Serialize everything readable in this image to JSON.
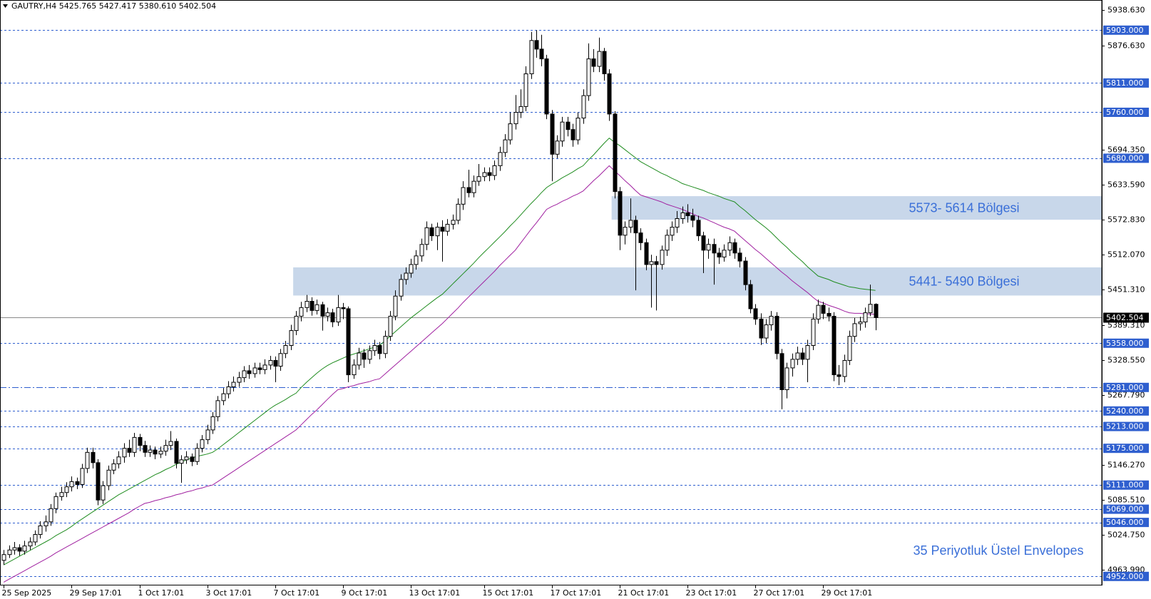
{
  "chart_data": {
    "type": "candlestick",
    "title": "GAUTRY,H4  5425.765 5427.417 5380.610 5402.504",
    "annotation": "35 Periyotluk Üstel Envelopes",
    "categories": [
      "25 Sep 2025",
      null,
      null,
      null,
      null,
      null,
      null,
      null,
      null,
      null,
      null,
      null,
      null,
      "29 Sep 17:01",
      null,
      null,
      null,
      null,
      null,
      null,
      null,
      null,
      null,
      null,
      null,
      null,
      "1 Oct 17:01",
      null,
      null,
      null,
      null,
      null,
      null,
      null,
      null,
      null,
      null,
      null,
      null,
      "3 Oct 17:01",
      null,
      null,
      null,
      null,
      null,
      null,
      null,
      null,
      null,
      null,
      null,
      null,
      "7 Oct 17:01",
      null,
      null,
      null,
      null,
      null,
      null,
      null,
      null,
      null,
      null,
      null,
      null,
      "9 Oct 17:01",
      null,
      null,
      null,
      null,
      null,
      null,
      null,
      null,
      null,
      null,
      null,
      null,
      "13 Oct 17:01",
      null,
      null,
      null,
      null,
      null,
      null,
      null,
      null,
      null,
      null,
      null,
      null,
      null,
      "15 Oct 17:01",
      null,
      null,
      null,
      null,
      null,
      null,
      null,
      null,
      null,
      null,
      null,
      null,
      "17 Oct 17:01",
      null,
      null,
      null,
      null,
      null,
      null,
      null,
      null,
      null,
      null,
      null,
      null,
      "21 Oct 17:01",
      null,
      null,
      null,
      null,
      null,
      null,
      null,
      null,
      null,
      null,
      null,
      null,
      "23 Oct 17:01",
      null,
      null,
      null,
      null,
      null,
      null,
      null,
      null,
      null,
      null,
      null,
      null,
      "27 Oct 17:01",
      null,
      null,
      null,
      null,
      null,
      null,
      null,
      null,
      null,
      null,
      null,
      null,
      "29 Oct 17:01",
      null,
      null,
      null,
      null,
      null,
      null,
      null,
      null,
      null,
      null
    ],
    "open": [
      4980,
      4990,
      4998,
      5002,
      4996,
      5005,
      5012,
      5025,
      5040,
      5047,
      5070,
      5091,
      5098,
      5108,
      5117,
      5112,
      5140,
      5168,
      5150,
      5085,
      5110,
      5137,
      5148,
      5160,
      5175,
      5168,
      5194,
      5180,
      5168,
      5172,
      5165,
      5170,
      5180,
      5187,
      5149,
      5155,
      5160,
      5152,
      5175,
      5190,
      5207,
      5230,
      5258,
      5270,
      5282,
      5290,
      5298,
      5310,
      5305,
      5315,
      5312,
      5320,
      5328,
      5318,
      5340,
      5354,
      5380,
      5405,
      5420,
      5431,
      5415,
      5425,
      5405,
      5411,
      5395,
      5420,
      5418,
      5303,
      5320,
      5341,
      5330,
      5345,
      5354,
      5340,
      5370,
      5405,
      5440,
      5469,
      5480,
      5495,
      5510,
      5530,
      5559,
      5545,
      5560,
      5553,
      5565,
      5572,
      5600,
      5629,
      5620,
      5640,
      5648,
      5655,
      5650,
      5667,
      5690,
      5712,
      5740,
      5760,
      5770,
      5827,
      5885,
      5870,
      5853,
      5757,
      5687,
      5710,
      5743,
      5730,
      5712,
      5750,
      5789,
      5853,
      5840,
      5866,
      5827,
      5757,
      5622,
      5546,
      5560,
      5572,
      5550,
      5533,
      5495,
      5500,
      5495,
      5520,
      5546,
      5560,
      5575,
      5585,
      5580,
      5572,
      5545,
      5520,
      5530,
      5515,
      5508,
      5520,
      5533,
      5515,
      5501,
      5460,
      5418,
      5400,
      5367,
      5390,
      5405,
      5340,
      5277,
      5315,
      5330,
      5341,
      5330,
      5354,
      5400,
      5424,
      5410,
      5405,
      5303,
      5300,
      5328,
      5370,
      5392,
      5395,
      5411,
      5425.765
    ],
    "high": [
      4998,
      5006,
      5012,
      5008,
      5014,
      5020,
      5032,
      5048,
      5058,
      5078,
      5098,
      5108,
      5116,
      5126,
      5124,
      5148,
      5176,
      5176,
      5156,
      5118,
      5145,
      5156,
      5170,
      5184,
      5190,
      5202,
      5200,
      5188,
      5180,
      5178,
      5178,
      5190,
      5205,
      5192,
      5163,
      5170,
      5166,
      5184,
      5198,
      5216,
      5238,
      5266,
      5280,
      5292,
      5300,
      5308,
      5318,
      5320,
      5324,
      5324,
      5330,
      5336,
      5335,
      5348,
      5362,
      5390,
      5414,
      5430,
      5442,
      5438,
      5434,
      5430,
      5420,
      5418,
      5442,
      5428,
      5422,
      5330,
      5350,
      5348,
      5354,
      5364,
      5360,
      5380,
      5414,
      5450,
      5478,
      5490,
      5505,
      5520,
      5540,
      5570,
      5566,
      5568,
      5572,
      5574,
      5582,
      5610,
      5640,
      5660,
      5650,
      5670,
      5664,
      5664,
      5676,
      5700,
      5722,
      5760,
      5790,
      5800,
      5840,
      5900,
      5903,
      5895,
      5860,
      5764,
      5720,
      5752,
      5752,
      5740,
      5760,
      5800,
      5880,
      5870,
      5890,
      5872,
      5835,
      5762,
      5630,
      5570,
      5610,
      5580,
      5558,
      5540,
      5512,
      5510,
      5528,
      5556,
      5570,
      5588,
      5596,
      5600,
      5592,
      5580,
      5552,
      5540,
      5540,
      5524,
      5530,
      5544,
      5540,
      5524,
      5508,
      5468,
      5426,
      5410,
      5400,
      5414,
      5412,
      5348,
      5324,
      5340,
      5352,
      5350,
      5364,
      5410,
      5434,
      5430,
      5420,
      5412,
      5320,
      5338,
      5380,
      5402,
      5404,
      5420,
      5460,
      5427.417
    ],
    "low": [
      4972,
      4984,
      4990,
      4988,
      4990,
      4998,
      5006,
      5018,
      5030,
      5040,
      5062,
      5084,
      5090,
      5100,
      5104,
      5106,
      5132,
      5140,
      5076,
      5078,
      5102,
      5130,
      5140,
      5150,
      5160,
      5160,
      5170,
      5160,
      5160,
      5156,
      5158,
      5162,
      5172,
      5140,
      5115,
      5148,
      5144,
      5146,
      5168,
      5182,
      5200,
      5222,
      5250,
      5262,
      5274,
      5282,
      5290,
      5296,
      5298,
      5304,
      5304,
      5312,
      5290,
      5310,
      5332,
      5346,
      5372,
      5396,
      5412,
      5406,
      5408,
      5380,
      5396,
      5386,
      5388,
      5400,
      5290,
      5296,
      5312,
      5315,
      5322,
      5336,
      5330,
      5332,
      5362,
      5398,
      5432,
      5460,
      5472,
      5486,
      5500,
      5520,
      5536,
      5520,
      5500,
      5545,
      5556,
      5565,
      5590,
      5612,
      5612,
      5632,
      5640,
      5640,
      5642,
      5658,
      5682,
      5704,
      5730,
      5750,
      5762,
      5818,
      5855,
      5840,
      5748,
      5640,
      5680,
      5700,
      5718,
      5700,
      5704,
      5740,
      5780,
      5830,
      5830,
      5815,
      5745,
      5610,
      5520,
      5530,
      5550,
      5450,
      5520,
      5485,
      5420,
      5415,
      5486,
      5510,
      5536,
      5550,
      5566,
      5568,
      5560,
      5536,
      5480,
      5505,
      5460,
      5496,
      5500,
      5510,
      5505,
      5490,
      5450,
      5410,
      5390,
      5355,
      5358,
      5380,
      5330,
      5243,
      5262,
      5300,
      5320,
      5320,
      5290,
      5346,
      5392,
      5400,
      5396,
      5292,
      5285,
      5290,
      5320,
      5360,
      5380,
      5385,
      5405,
      5380.61
    ],
    "close": [
      4990,
      4998,
      5002,
      4996,
      5005,
      5012,
      5025,
      5040,
      5047,
      5070,
      5091,
      5098,
      5108,
      5117,
      5112,
      5140,
      5168,
      5150,
      5085,
      5110,
      5137,
      5148,
      5160,
      5175,
      5168,
      5194,
      5180,
      5168,
      5172,
      5165,
      5170,
      5180,
      5187,
      5149,
      5155,
      5160,
      5152,
      5175,
      5190,
      5207,
      5230,
      5258,
      5270,
      5282,
      5290,
      5298,
      5310,
      5305,
      5315,
      5312,
      5320,
      5328,
      5318,
      5340,
      5354,
      5380,
      5405,
      5420,
      5431,
      5415,
      5425,
      5405,
      5411,
      5395,
      5420,
      5418,
      5303,
      5320,
      5341,
      5330,
      5345,
      5354,
      5340,
      5370,
      5405,
      5440,
      5469,
      5480,
      5495,
      5510,
      5530,
      5559,
      5545,
      5560,
      5553,
      5565,
      5572,
      5600,
      5629,
      5620,
      5640,
      5648,
      5655,
      5650,
      5667,
      5690,
      5712,
      5740,
      5760,
      5770,
      5827,
      5885,
      5870,
      5853,
      5757,
      5687,
      5710,
      5743,
      5730,
      5712,
      5750,
      5789,
      5853,
      5840,
      5866,
      5827,
      5757,
      5622,
      5546,
      5560,
      5572,
      5550,
      5533,
      5495,
      5500,
      5495,
      5520,
      5546,
      5560,
      5575,
      5585,
      5580,
      5572,
      5545,
      5520,
      5530,
      5515,
      5508,
      5520,
      5533,
      5515,
      5501,
      5460,
      5418,
      5400,
      5367,
      5390,
      5405,
      5340,
      5277,
      5315,
      5330,
      5341,
      5330,
      5354,
      5400,
      5424,
      5410,
      5405,
      5303,
      5300,
      5328,
      5370,
      5392,
      5395,
      5411,
      5425.765,
      5402.504
    ],
    "up_color": "#ffffff",
    "down_color": "#000000",
    "outline_color": "#000000",
    "envelopes": [
      {
        "color": "#1f8c1f",
        "values": [
          4972,
          4977,
          4982,
          4987,
          4992,
          4997,
          5002,
          5007,
          5012,
          5017,
          5023,
          5028,
          5033,
          5039,
          5046,
          5052,
          5058,
          5064,
          5070,
          5076,
          5082,
          5088,
          5094,
          5099,
          5104,
          5109,
          5114,
          5119,
          5124,
          5129,
          5133,
          5138,
          5142,
          5147,
          5151,
          5155,
          5158,
          5161,
          5163,
          5165,
          5168,
          5174,
          5181,
          5188,
          5195,
          5202,
          5209,
          5216,
          5223,
          5230,
          5237,
          5244,
          5250,
          5255,
          5260,
          5266,
          5271,
          5281,
          5290,
          5298,
          5306,
          5313,
          5319,
          5324,
          5328,
          5332,
          5336,
          5339,
          5342,
          5345,
          5348,
          5351,
          5354,
          5362,
          5370,
          5378,
          5386,
          5394,
          5402,
          5409,
          5416,
          5423,
          5430,
          5437,
          5443,
          5452,
          5461,
          5470,
          5479,
          5488,
          5497,
          5507,
          5516,
          5525,
          5534,
          5543,
          5552,
          5562,
          5571,
          5581,
          5591,
          5601,
          5610,
          5620,
          5629,
          5635,
          5640,
          5646,
          5651,
          5656,
          5662,
          5667,
          5677,
          5686,
          5696,
          5706,
          5715,
          5708,
          5702,
          5695,
          5688,
          5681,
          5674,
          5669,
          5664,
          5659,
          5654,
          5650,
          5645,
          5641,
          5636,
          5633,
          5630,
          5627,
          5624,
          5620,
          5617,
          5614,
          5610,
          5607,
          5604,
          5596,
          5589,
          5581,
          5573,
          5566,
          5559,
          5551,
          5542,
          5533,
          5525,
          5516,
          5508,
          5500,
          5491,
          5483,
          5475,
          5472,
          5469,
          5465,
          5462,
          5459,
          5456,
          5455,
          5453,
          5452,
          5451,
          5450
        ]
      },
      {
        "color": "#a020a0",
        "values": [
          4942,
          4947,
          4952,
          4957,
          4962,
          4967,
          4972,
          4977,
          4982,
          4987,
          4993,
          4998,
          5003,
          5008,
          5013,
          5018,
          5023,
          5028,
          5033,
          5038,
          5043,
          5048,
          5053,
          5058,
          5063,
          5069,
          5074,
          5079,
          5081,
          5084,
          5086,
          5089,
          5091,
          5094,
          5096,
          5099,
          5101,
          5104,
          5106,
          5109,
          5111,
          5117,
          5123,
          5129,
          5135,
          5141,
          5147,
          5153,
          5159,
          5165,
          5171,
          5177,
          5183,
          5189,
          5195,
          5201,
          5207,
          5216,
          5225,
          5234,
          5242,
          5251,
          5260,
          5269,
          5277,
          5279,
          5282,
          5284,
          5287,
          5289,
          5291,
          5294,
          5296,
          5304,
          5312,
          5320,
          5328,
          5336,
          5344,
          5352,
          5360,
          5368,
          5376,
          5384,
          5392,
          5401,
          5410,
          5419,
          5429,
          5438,
          5447,
          5456,
          5465,
          5474,
          5483,
          5493,
          5502,
          5511,
          5520,
          5532,
          5544,
          5556,
          5567,
          5579,
          5591,
          5596,
          5600,
          5605,
          5609,
          5614,
          5618,
          5623,
          5632,
          5641,
          5649,
          5658,
          5667,
          5658,
          5650,
          5641,
          5633,
          5624,
          5616,
          5613,
          5610,
          5607,
          5604,
          5600,
          5597,
          5594,
          5591,
          5587,
          5583,
          5579,
          5576,
          5572,
          5568,
          5564,
          5560,
          5557,
          5553,
          5545,
          5537,
          5529,
          5521,
          5514,
          5506,
          5498,
          5490,
          5482,
          5475,
          5467,
          5460,
          5453,
          5446,
          5438,
          5431,
          5428,
          5424,
          5421,
          5418,
          5414,
          5411,
          5410,
          5410,
          5409,
          5409,
          5408
        ]
      }
    ],
    "zones": [
      {
        "low": 5573,
        "high": 5614,
        "start": 117,
        "color": "#c8d7ea",
        "label": "5573- 5614 Bölgesi"
      },
      {
        "low": 5441,
        "high": 5490,
        "start": 56,
        "color": "#c8d7ea",
        "label": "5441- 5490 Bölgesi"
      }
    ],
    "levels": [
      {
        "value": 5903,
        "label": "5903.000"
      },
      {
        "value": 5811,
        "label": "5811.000"
      },
      {
        "value": 5760,
        "label": "5760.000"
      },
      {
        "value": 5680,
        "label": "5680.000"
      },
      {
        "value": 5358,
        "label": "5358.000"
      },
      {
        "value": 5281,
        "label": "5281.000",
        "style": "dashdot"
      },
      {
        "value": 5240,
        "label": "5240.000"
      },
      {
        "value": 5213,
        "label": "5213.000"
      },
      {
        "value": 5175,
        "label": "5175.000"
      },
      {
        "value": 5111,
        "label": "5111.000"
      },
      {
        "value": 5069,
        "label": "5069.000"
      },
      {
        "value": 5046,
        "label": "5046.000"
      },
      {
        "value": 4952,
        "label": "4952.000"
      }
    ],
    "level_color": "#2f5fcf",
    "last_price": {
      "value": 5402.504,
      "label": "5402.504"
    },
    "ylim": [
      4937.5,
      5955.5
    ],
    "yticks": [
      {
        "value": 5938.63,
        "label": "5938.630"
      },
      {
        "value": 5876.63,
        "label": "5876.630"
      },
      {
        "value": 5694.35,
        "label": "5694.350"
      },
      {
        "value": 5633.59,
        "label": "5633.590"
      },
      {
        "value": 5572.83,
        "label": "5572.830"
      },
      {
        "value": 5512.07,
        "label": "5512.070"
      },
      {
        "value": 5451.31,
        "label": "5451.310"
      },
      {
        "value": 5389.31,
        "label": "5389.310"
      },
      {
        "value": 5328.55,
        "label": "5328.550"
      },
      {
        "value": 5267.79,
        "label": "5267.790"
      },
      {
        "value": 5146.27,
        "label": "5146.270"
      },
      {
        "value": 5085.51,
        "label": "5085.510"
      },
      {
        "value": 5024.75,
        "label": "5024.750"
      },
      {
        "value": 4963.99,
        "label": "4963.990"
      }
    ]
  }
}
